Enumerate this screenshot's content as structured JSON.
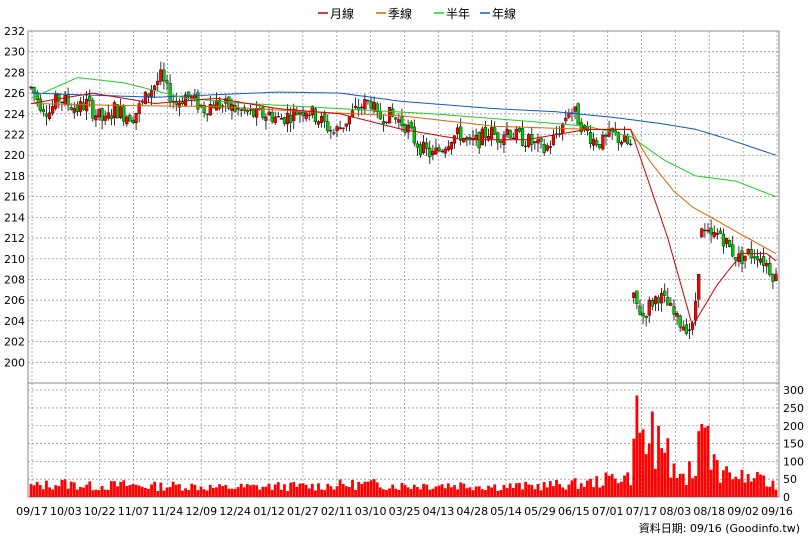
{
  "chart_data": {
    "type": "candlestick",
    "legend": [
      {
        "label": "月線",
        "color": "#cc0000"
      },
      {
        "label": "季線",
        "color": "#dd6600"
      },
      {
        "label": "半年",
        "color": "#22cc22"
      },
      {
        "label": "年線",
        "color": "#1155cc"
      }
    ],
    "price_axis": {
      "ylim": [
        198,
        232
      ],
      "ticks": [
        200,
        202,
        204,
        206,
        208,
        210,
        212,
        214,
        216,
        218,
        220,
        222,
        224,
        226,
        228,
        230,
        232
      ]
    },
    "volume_axis": {
      "ylim": [
        0,
        320
      ],
      "ticks": [
        0,
        50,
        100,
        150,
        200,
        250,
        300
      ]
    },
    "x_ticks": [
      "09/17",
      "10/03",
      "10/22",
      "11/07",
      "11/24",
      "12/09",
      "12/24",
      "01/12",
      "01/27",
      "02/11",
      "03/10",
      "03/25",
      "04/13",
      "04/28",
      "05/14",
      "05/29",
      "06/15",
      "07/01",
      "07/17",
      "08/03",
      "08/18",
      "09/02",
      "09/16"
    ],
    "date_note": "資料日期: 09/16  (Goodinfo.tw)",
    "colors": {
      "up": "#ff0000",
      "down": "#00cc00",
      "volume": "#ff0000",
      "grid": "#999999"
    },
    "price_anchors": [
      [
        0,
        226.5
      ],
      [
        3,
        225
      ],
      [
        6,
        224.2
      ],
      [
        9,
        225.5
      ],
      [
        12,
        225
      ],
      [
        15,
        224.5
      ],
      [
        18,
        225
      ],
      [
        21,
        224
      ],
      [
        24,
        223.2
      ],
      [
        27,
        224.5
      ],
      [
        30,
        224
      ],
      [
        33,
        223.8
      ],
      [
        36,
        225
      ],
      [
        39,
        226.5
      ],
      [
        42,
        227.5
      ],
      [
        44,
        226.2
      ],
      [
        47,
        225
      ],
      [
        50,
        225.8
      ],
      [
        53,
        225.2
      ],
      [
        56,
        224.5
      ],
      [
        59,
        225
      ],
      [
        62,
        224.8
      ],
      [
        65,
        224.6
      ],
      [
        68,
        224.2
      ],
      [
        71,
        224
      ],
      [
        74,
        223.8
      ],
      [
        77,
        224
      ],
      [
        80,
        223.5
      ],
      [
        83,
        223.8
      ],
      [
        86,
        224.2
      ],
      [
        89,
        224.5
      ],
      [
        92,
        223.8
      ],
      [
        95,
        223
      ],
      [
        98,
        222.2
      ],
      [
        101,
        223
      ],
      [
        104,
        224
      ],
      [
        107,
        224.8
      ],
      [
        110,
        225.2
      ],
      [
        112,
        223.5
      ],
      [
        115,
        224
      ],
      [
        118,
        223.5
      ],
      [
        121,
        223
      ],
      [
        124,
        221.5
      ],
      [
        127,
        220.5
      ],
      [
        130,
        220
      ],
      [
        133,
        220.8
      ],
      [
        136,
        221.8
      ],
      [
        139,
        222
      ],
      [
        142,
        221
      ],
      [
        145,
        221.5
      ],
      [
        148,
        222.3
      ],
      [
        151,
        221.8
      ],
      [
        154,
        222.5
      ],
      [
        157,
        221.8
      ],
      [
        160,
        221.5
      ],
      [
        163,
        221
      ],
      [
        166,
        220.5
      ],
      [
        169,
        221.5
      ],
      [
        172,
        223
      ],
      [
        174,
        224.5
      ],
      [
        176,
        224
      ],
      [
        179,
        222.5
      ],
      [
        182,
        221.5
      ],
      [
        185,
        221.2
      ],
      [
        188,
        222
      ],
      [
        191,
        221.5
      ],
      [
        194,
        220.8
      ],
      [
        195,
        206
      ],
      [
        198,
        204.5
      ],
      [
        200,
        205.5
      ],
      [
        203,
        206.5
      ],
      [
        206,
        205.5
      ],
      [
        209,
        204
      ],
      [
        212,
        203.5
      ],
      [
        214,
        203.2
      ],
      [
        215,
        206
      ],
      [
        217,
        212.5
      ],
      [
        220,
        212
      ],
      [
        223,
        212.5
      ],
      [
        226,
        211
      ],
      [
        229,
        210
      ],
      [
        232,
        210.5
      ],
      [
        235,
        210.5
      ],
      [
        238,
        209.5
      ],
      [
        240,
        208.6
      ],
      [
        241,
        208.2
      ]
    ],
    "volume_anchors": [
      [
        0,
        30
      ],
      [
        10,
        38
      ],
      [
        20,
        30
      ],
      [
        30,
        34
      ],
      [
        40,
        30
      ],
      [
        50,
        32
      ],
      [
        60,
        26
      ],
      [
        70,
        28
      ],
      [
        80,
        30
      ],
      [
        90,
        30
      ],
      [
        100,
        34
      ],
      [
        110,
        36
      ],
      [
        120,
        32
      ],
      [
        130,
        34
      ],
      [
        140,
        34
      ],
      [
        150,
        30
      ],
      [
        160,
        30
      ],
      [
        170,
        34
      ],
      [
        180,
        38
      ],
      [
        186,
        48
      ],
      [
        190,
        60
      ],
      [
        194,
        55
      ],
      [
        196,
        190
      ],
      [
        198,
        120
      ],
      [
        200,
        150
      ],
      [
        202,
        110
      ],
      [
        204,
        95
      ],
      [
        206,
        90
      ],
      [
        208,
        70
      ],
      [
        211,
        60
      ],
      [
        214,
        55
      ],
      [
        216,
        140
      ],
      [
        218,
        120
      ],
      [
        220,
        100
      ],
      [
        222,
        75
      ],
      [
        226,
        65
      ],
      [
        230,
        55
      ],
      [
        234,
        48
      ],
      [
        238,
        40
      ],
      [
        241,
        35
      ]
    ],
    "volume_spikes": [
      [
        196,
        285
      ],
      [
        198,
        190
      ],
      [
        201,
        240
      ],
      [
        203,
        200
      ],
      [
        206,
        165
      ],
      [
        213,
        100
      ],
      [
        216,
        185
      ],
      [
        217,
        205
      ],
      [
        218,
        195
      ],
      [
        219,
        200
      ],
      [
        221,
        120
      ],
      [
        224,
        75
      ],
      [
        235,
        70
      ]
    ],
    "volume_seed": 13,
    "price_seed": 7,
    "month_ma": [
      [
        0,
        225
      ],
      [
        20,
        226
      ],
      [
        40,
        225
      ],
      [
        60,
        225.5
      ],
      [
        80,
        224.5
      ],
      [
        100,
        224
      ],
      [
        120,
        222.5
      ],
      [
        140,
        221.5
      ],
      [
        160,
        221.5
      ],
      [
        180,
        222.5
      ],
      [
        194,
        222.5
      ],
      [
        206,
        212
      ],
      [
        214,
        203.5
      ],
      [
        222,
        207.5
      ],
      [
        230,
        210.5
      ],
      [
        238,
        210.5
      ],
      [
        241,
        209.8
      ]
    ],
    "season_ma": [
      [
        0,
        225
      ],
      [
        30,
        224.8
      ],
      [
        60,
        224.7
      ],
      [
        90,
        224.2
      ],
      [
        120,
        223.8
      ],
      [
        150,
        222.8
      ],
      [
        180,
        222.5
      ],
      [
        194,
        222.5
      ],
      [
        200,
        219.5
      ],
      [
        208,
        216.5
      ],
      [
        214,
        215
      ],
      [
        220,
        214
      ],
      [
        230,
        212.3
      ],
      [
        241,
        210.5
      ]
    ],
    "halfyear_ma": [
      [
        0,
        225.5
      ],
      [
        15,
        227.5
      ],
      [
        30,
        227
      ],
      [
        50,
        225.5
      ],
      [
        70,
        225
      ],
      [
        100,
        224.5
      ],
      [
        130,
        224
      ],
      [
        160,
        223.3
      ],
      [
        180,
        222.8
      ],
      [
        194,
        221.8
      ],
      [
        205,
        219.5
      ],
      [
        215,
        218
      ],
      [
        228,
        217.5
      ],
      [
        241,
        216
      ]
    ],
    "year_ma": [
      [
        0,
        226
      ],
      [
        40,
        225.6
      ],
      [
        80,
        226.1
      ],
      [
        100,
        226
      ],
      [
        120,
        225.2
      ],
      [
        150,
        224.5
      ],
      [
        170,
        224.2
      ],
      [
        190,
        223.6
      ],
      [
        205,
        223
      ],
      [
        215,
        222.5
      ],
      [
        225,
        221.6
      ],
      [
        241,
        220
      ]
    ]
  }
}
